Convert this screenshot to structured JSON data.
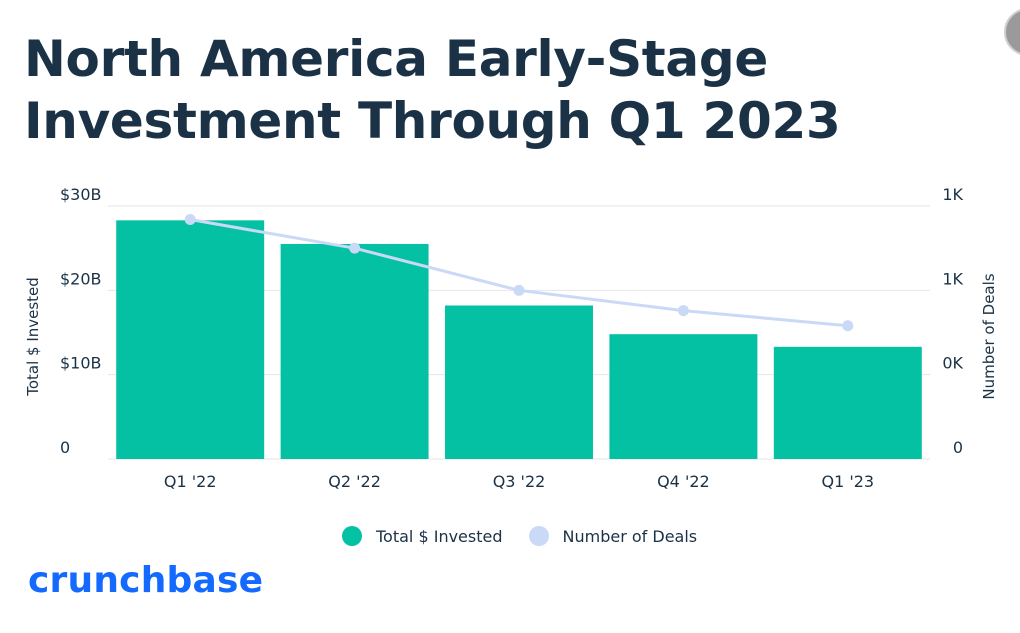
{
  "colors": {
    "bar": "#04c1a4",
    "line": "#c9d9f6",
    "text": "#1b3246",
    "grid": "#e6e6e6",
    "logo": "#146aff"
  },
  "chart_data": {
    "type": "bar",
    "title": "North America Early-Stage Investment Through Q1 2023",
    "categories": [
      "Q1 '22",
      "Q2 '22",
      "Q3 '22",
      "Q4 '22",
      "Q1 '23"
    ],
    "series": [
      {
        "name": "Total $ Invested",
        "type": "bar",
        "axis": "left",
        "values": [
          28.3,
          25.5,
          18.2,
          14.8,
          13.3
        ]
      },
      {
        "name": "Number of Deals",
        "type": "line",
        "axis": "right",
        "values": [
          1.42,
          1.25,
          1.0,
          0.88,
          0.79
        ]
      }
    ],
    "y_left": {
      "label": "Total $ Invested",
      "ylim": [
        0,
        30
      ],
      "ticks": [
        0,
        10,
        20,
        30
      ],
      "tick_labels": [
        "0",
        "$10B",
        "$20B",
        "$30B"
      ]
    },
    "y_right": {
      "label": "Number of Deals",
      "ylim": [
        0,
        1.5
      ],
      "ticks": [
        0,
        0.5,
        1.0,
        1.5
      ],
      "tick_labels": [
        "0",
        "0K",
        "1K",
        "1K"
      ]
    },
    "grid": true,
    "legend": "bottom-center"
  },
  "legend": {
    "items": [
      {
        "label": "Total $ Invested",
        "color": "#04c1a4"
      },
      {
        "label": "Number of Deals",
        "color": "#c9d9f6"
      }
    ]
  },
  "logo": {
    "text": "crunchbase"
  }
}
